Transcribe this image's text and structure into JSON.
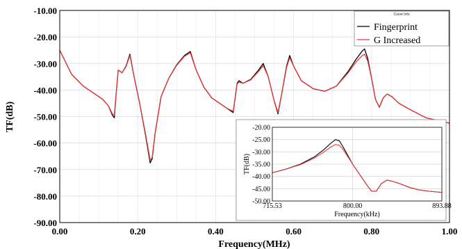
{
  "chart_data": [
    {
      "type": "line",
      "xlabel": "Frequency(MHz)",
      "ylabel": "TF(dB)",
      "xlim": [
        0.0,
        1.0
      ],
      "ylim": [
        -90.0,
        -10.0
      ],
      "x_ticks": [
        "0.00",
        "0.20",
        "0.40",
        "0.60",
        "0.80",
        "1.00"
      ],
      "y_ticks": [
        "-10.00",
        "-20.00",
        "-30.00",
        "-40.00",
        "-50.00",
        "-60.00",
        "-70.00",
        "-80.00",
        "-90.00"
      ],
      "grid": true,
      "legend": {
        "title": "Curve Info",
        "placement": "top-right"
      },
      "series": [
        {
          "name": "Fingerprint",
          "color": "#000000",
          "x": [
            0.0,
            0.01,
            0.03,
            0.06,
            0.09,
            0.11,
            0.125,
            0.135,
            0.14,
            0.145,
            0.15,
            0.16,
            0.17,
            0.18,
            0.19,
            0.205,
            0.22,
            0.232,
            0.237,
            0.245,
            0.26,
            0.28,
            0.3,
            0.32,
            0.335,
            0.35,
            0.37,
            0.39,
            0.41,
            0.43,
            0.445,
            0.45,
            0.455,
            0.46,
            0.47,
            0.49,
            0.51,
            0.522,
            0.535,
            0.55,
            0.56,
            0.57,
            0.582,
            0.59,
            0.6,
            0.62,
            0.65,
            0.68,
            0.71,
            0.74,
            0.76,
            0.775,
            0.782,
            0.79,
            0.8,
            0.81,
            0.82,
            0.83,
            0.84,
            0.852,
            0.87,
            0.9,
            0.94,
            0.97,
            1.0
          ],
          "y": [
            -25.0,
            -28.0,
            -34.0,
            -38.5,
            -41.5,
            -43.5,
            -46.0,
            -49.5,
            -50.5,
            -41.0,
            -32.5,
            -33.5,
            -31.0,
            -26.5,
            -34.5,
            -45.0,
            -57.0,
            -67.5,
            -66.0,
            -56.0,
            -42.5,
            -35.5,
            -30.5,
            -27.0,
            -25.5,
            -32.5,
            -39.0,
            -43.0,
            -45.0,
            -47.0,
            -48.5,
            -43.0,
            -37.5,
            -36.5,
            -37.5,
            -36.0,
            -32.5,
            -30.0,
            -35.0,
            -44.0,
            -49.0,
            -41.0,
            -31.0,
            -27.0,
            -31.0,
            -36.5,
            -39.5,
            -40.5,
            -38.5,
            -33.0,
            -28.5,
            -25.5,
            -24.5,
            -28.0,
            -35.5,
            -43.5,
            -46.5,
            -43.0,
            -41.5,
            -42.5,
            -45.0,
            -47.5,
            -50.5,
            -51.5,
            -52.5
          ]
        },
        {
          "name": "G Increased",
          "color": "#e8383b",
          "x": [
            0.0,
            0.01,
            0.03,
            0.06,
            0.09,
            0.11,
            0.125,
            0.135,
            0.14,
            0.145,
            0.15,
            0.16,
            0.17,
            0.18,
            0.19,
            0.205,
            0.22,
            0.232,
            0.237,
            0.245,
            0.26,
            0.28,
            0.3,
            0.32,
            0.335,
            0.35,
            0.37,
            0.39,
            0.41,
            0.43,
            0.445,
            0.45,
            0.455,
            0.46,
            0.47,
            0.49,
            0.51,
            0.522,
            0.535,
            0.55,
            0.56,
            0.57,
            0.582,
            0.59,
            0.6,
            0.62,
            0.65,
            0.68,
            0.71,
            0.74,
            0.76,
            0.775,
            0.782,
            0.79,
            0.8,
            0.81,
            0.82,
            0.83,
            0.84,
            0.852,
            0.87,
            0.9,
            0.94,
            0.97,
            1.0
          ],
          "y": [
            -25.0,
            -28.0,
            -34.0,
            -38.5,
            -41.5,
            -43.5,
            -46.0,
            -49.0,
            -49.5,
            -41.0,
            -32.5,
            -33.5,
            -31.2,
            -27.0,
            -34.5,
            -45.0,
            -56.5,
            -66.5,
            -65.5,
            -56.0,
            -42.5,
            -35.5,
            -30.7,
            -27.3,
            -26.0,
            -32.5,
            -39.0,
            -43.0,
            -45.0,
            -47.0,
            -48.0,
            -43.0,
            -37.8,
            -37.0,
            -37.5,
            -36.2,
            -33.0,
            -30.8,
            -35.0,
            -44.0,
            -48.5,
            -41.0,
            -31.5,
            -27.8,
            -31.0,
            -36.5,
            -39.5,
            -40.5,
            -38.5,
            -33.5,
            -29.5,
            -27.2,
            -26.5,
            -29.0,
            -35.5,
            -43.5,
            -46.5,
            -43.0,
            -41.5,
            -42.5,
            -45.0,
            -47.5,
            -50.5,
            -51.5,
            -52.5
          ]
        }
      ]
    },
    {
      "type": "line",
      "xlabel": "Frequency(kHz)",
      "ylabel": "TF(dB)",
      "xlim": [
        715.53,
        893.88
      ],
      "ylim": [
        -50.0,
        -20.0
      ],
      "x_ticks": [
        "715.53",
        "800.00",
        "893.88"
      ],
      "y_ticks": [
        "-20.00",
        "-25.00",
        "-30.00",
        "-35.00",
        "-40.00",
        "-45.00",
        "-50.00"
      ],
      "grid": true,
      "series": [
        {
          "name": "Fingerprint",
          "color": "#000000",
          "x": [
            715.53,
            730,
            745,
            760,
            770,
            777,
            782,
            786,
            790,
            795,
            800,
            808,
            815,
            820,
            825,
            830,
            836,
            842,
            850,
            860,
            870,
            880,
            893.88
          ],
          "y": [
            -38.5,
            -37.0,
            -35.0,
            -32.0,
            -29.0,
            -26.5,
            -25.0,
            -25.5,
            -28.0,
            -31.5,
            -35.0,
            -39.5,
            -43.5,
            -46.0,
            -46.0,
            -43.0,
            -41.5,
            -42.0,
            -43.0,
            -44.5,
            -45.5,
            -46.0,
            -46.5
          ]
        },
        {
          "name": "G Increased",
          "color": "#e8383b",
          "x": [
            715.53,
            730,
            745,
            760,
            770,
            777,
            782,
            786,
            790,
            795,
            800,
            808,
            815,
            820,
            825,
            830,
            836,
            842,
            850,
            860,
            870,
            880,
            893.88
          ],
          "y": [
            -38.5,
            -37.0,
            -35.2,
            -32.5,
            -30.0,
            -28.0,
            -27.0,
            -27.3,
            -29.0,
            -32.0,
            -35.0,
            -39.5,
            -43.5,
            -46.0,
            -46.0,
            -43.0,
            -41.5,
            -42.0,
            -43.0,
            -44.5,
            -45.5,
            -46.0,
            -46.5
          ]
        }
      ]
    }
  ]
}
